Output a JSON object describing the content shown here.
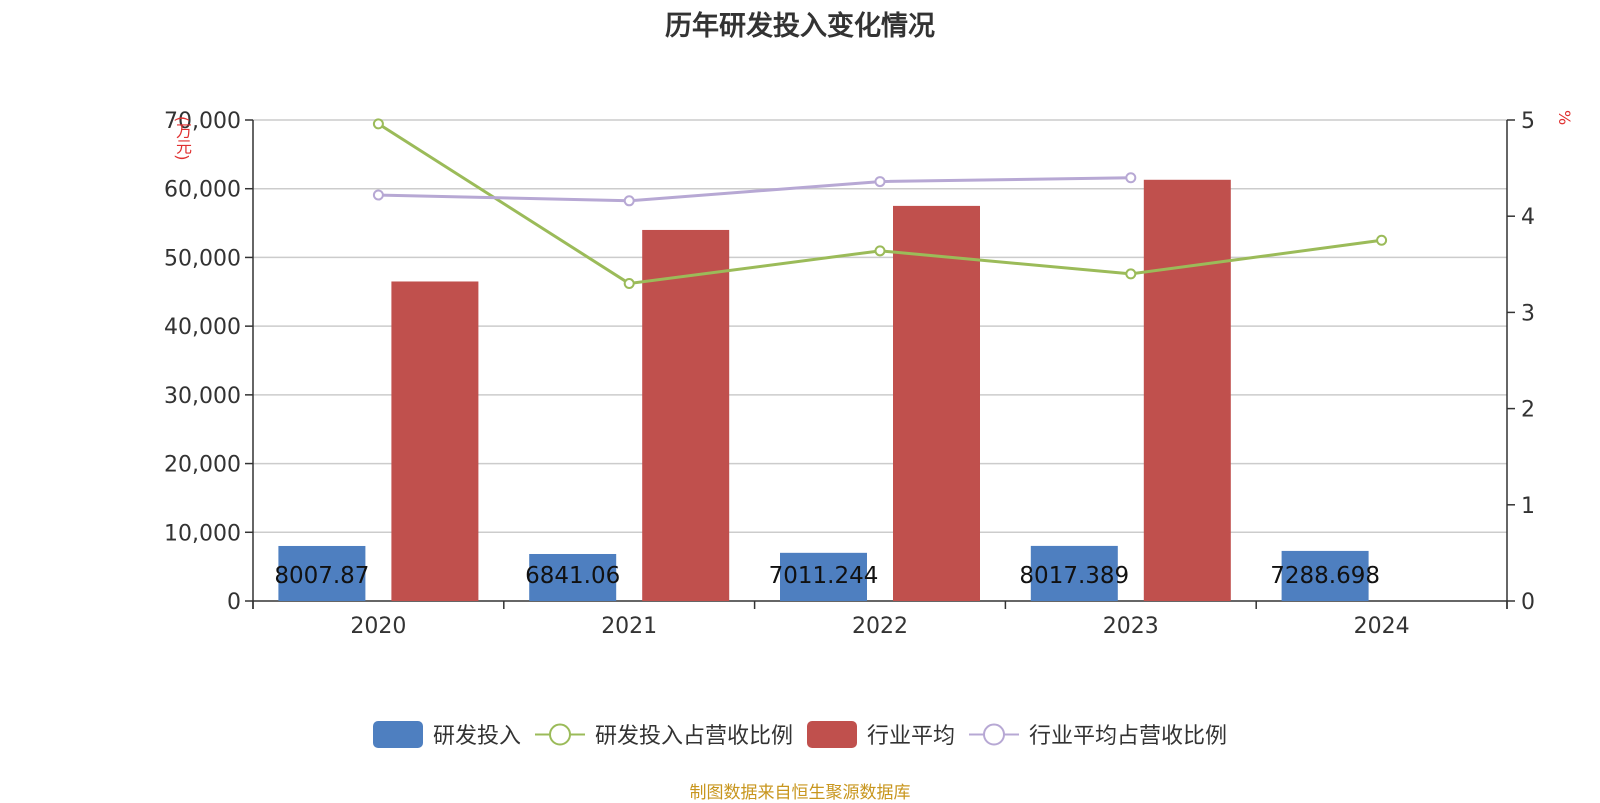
{
  "chart_data": {
    "type": "bar",
    "title": "历年研发投入变化情况",
    "categories": [
      "2020",
      "2021",
      "2022",
      "2023",
      "2024"
    ],
    "y_left": {
      "unit": "(万元)",
      "ylim": [
        0,
        70000
      ],
      "ticks": [
        0,
        10000,
        20000,
        30000,
        40000,
        50000,
        60000,
        70000
      ],
      "tick_labels": [
        "0",
        "10,000",
        "20,000",
        "30,000",
        "40,000",
        "50,000",
        "60,000",
        "70,000"
      ]
    },
    "y_right": {
      "unit": "%",
      "ylim": [
        0,
        5
      ],
      "ticks": [
        0,
        1,
        2,
        3,
        4,
        5
      ],
      "tick_labels": [
        "0",
        "1",
        "2",
        "3",
        "4",
        "5"
      ]
    },
    "series": [
      {
        "name": "研发投入",
        "type": "bar",
        "axis": "left",
        "color": "#4e7fc0",
        "values": [
          8007.87,
          6841.06,
          7011.244,
          8017.389,
          7288.698
        ],
        "labels": [
          "8007.87",
          "6841.06",
          "7011.244",
          "8017.389",
          "7288.698"
        ]
      },
      {
        "name": "研发投入占营收比例",
        "type": "line",
        "axis": "right",
        "color": "#9bbb59",
        "values": [
          4.96,
          3.3,
          3.64,
          3.4,
          3.75
        ]
      },
      {
        "name": "行业平均",
        "type": "bar",
        "axis": "left",
        "color": "#c0504d",
        "values": [
          46500,
          54000,
          57500,
          61300,
          null
        ]
      },
      {
        "name": "行业平均占营收比例",
        "type": "line",
        "axis": "right",
        "color": "#b7a8d4",
        "values": [
          4.22,
          4.16,
          4.36,
          4.4,
          null
        ]
      }
    ],
    "grid": true,
    "legend_position": "bottom-center"
  },
  "source_text": "制图数据来自恒生聚源数据库"
}
